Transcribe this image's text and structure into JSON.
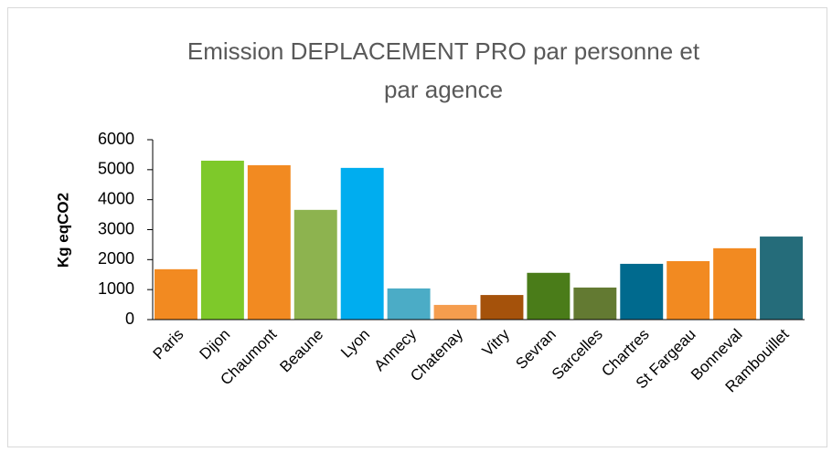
{
  "chart_data": {
    "type": "bar",
    "title": [
      "Emission DEPLACEMENT PRO par personne et",
      "par agence"
    ],
    "y_label": "Kg eqCO2",
    "categories": [
      "Paris",
      "Dijon",
      "Chaumont",
      "Beaune",
      "Lyon",
      "Annecy",
      "Chatenay",
      "Vitry",
      "Sevran",
      "Sarcelles",
      "Chartres",
      "St Fargeau",
      "Bonneval",
      "Rambouillet"
    ],
    "values": [
      1680,
      5300,
      5150,
      3660,
      5060,
      1040,
      490,
      820,
      1560,
      1070,
      1860,
      1950,
      2380,
      2770
    ],
    "colors": [
      "#f28a21",
      "#7ec92a",
      "#f28a21",
      "#8db34f",
      "#00adef",
      "#4bacc6",
      "#f59d4e",
      "#a5520b",
      "#4a7c19",
      "#637a32",
      "#006a8e",
      "#f28a21",
      "#f28a21",
      "#256c7a"
    ],
    "ylim": [
      0,
      6000
    ],
    "yticks": [
      0,
      1000,
      2000,
      3000,
      4000,
      5000,
      6000
    ],
    "grid": false
  }
}
